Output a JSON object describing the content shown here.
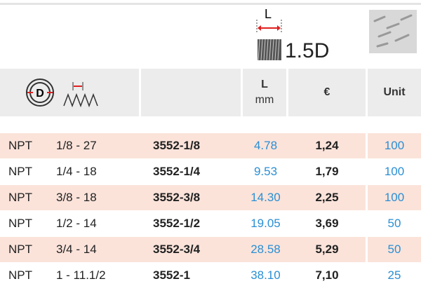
{
  "header": {
    "length_symbol": "L",
    "ratio": "1.5D",
    "columns": {
      "length": "L",
      "length_unit": "mm",
      "price": "€",
      "unit": "Unit"
    }
  },
  "table": {
    "rows": [
      [
        "NPT",
        "1/8 - 27",
        "3552-1/8",
        "4.78",
        "1,24",
        "100"
      ],
      [
        "NPT",
        "1/4 - 18",
        "3552-1/4",
        "9.53",
        "1,79",
        "100"
      ],
      [
        "NPT",
        "3/8 - 18",
        "3552-3/8",
        "14.30",
        "2,25",
        "100"
      ],
      [
        "NPT",
        "1/2 - 14",
        "3552-1/2",
        "19.05",
        "3,69",
        "50"
      ],
      [
        "NPT",
        "3/4 - 14",
        "3552-3/4",
        "28.58",
        "5,29",
        "50"
      ],
      [
        "NPT",
        "1 - 11.1/2",
        "3552-1",
        "38.10",
        "7,10",
        "25"
      ]
    ]
  }
}
